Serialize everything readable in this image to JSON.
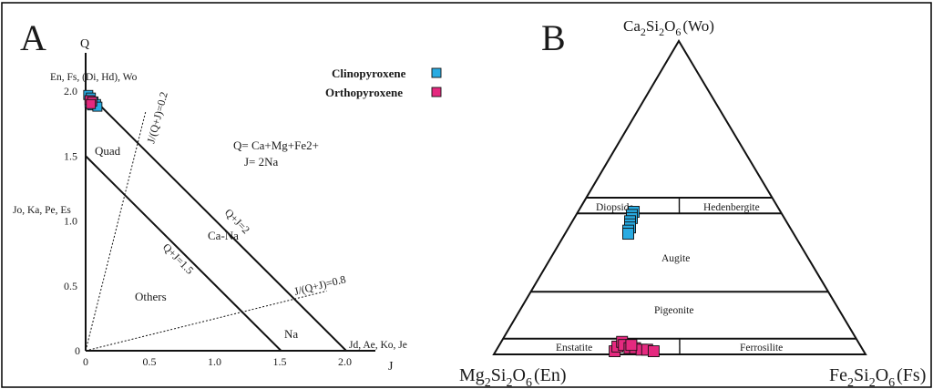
{
  "chart_data": [
    {
      "panel": "A",
      "type": "scatter",
      "xlabel": "J",
      "ylabel": "Q",
      "xlim": [
        0,
        2.0
      ],
      "ylim": [
        0,
        2.0
      ],
      "x_ticks": [
        "0",
        "0.5",
        "1.0",
        "1.5",
        "2.0"
      ],
      "y_ticks": [
        "0",
        "0.5",
        "1.0",
        "1.5",
        "2.0"
      ],
      "corner_labels": {
        "top": "En, Fs, (Di, Hd), Wo",
        "middle": "Jo, Ka, Pe, Es",
        "bottom_right": "Jd, Ae, Ko, Je"
      },
      "lines": [
        {
          "label": "Q+J=2",
          "from": [
            0,
            2.0
          ],
          "to": [
            2.0,
            0
          ]
        },
        {
          "label": "Q+J=1.5",
          "from": [
            0,
            1.5
          ],
          "to": [
            1.5,
            0
          ]
        },
        {
          "label": "J/(Q+J)=0.2",
          "from": [
            0,
            0
          ],
          "to": [
            0.46,
            1.84
          ],
          "style": "dotted"
        },
        {
          "label": "J/(Q+J)=0.8",
          "from": [
            0,
            0
          ],
          "to": [
            1.85,
            0.46
          ],
          "style": "dotted"
        }
      ],
      "fields": [
        "Quad",
        "Ca-Na",
        "Others",
        "Na"
      ],
      "formulas": [
        "Q= Ca+Mg+Fe2+",
        "J= 2Na"
      ],
      "legend": {
        "position": "top-right",
        "entries": [
          "Clinopyroxene",
          "Orthopyroxene"
        ]
      },
      "series": [
        {
          "name": "Clinopyroxene",
          "color": "#29abe2",
          "points": [
            [
              0.02,
              1.97
            ],
            [
              0.04,
              1.95
            ],
            [
              0.06,
              1.92
            ],
            [
              0.08,
              1.9
            ],
            [
              0.05,
              1.89
            ],
            [
              0.09,
              1.88
            ],
            [
              0.03,
              1.91
            ]
          ]
        },
        {
          "name": "Orthopyroxene",
          "color": "#e5297f",
          "points": [
            [
              0.03,
              1.93
            ],
            [
              0.05,
              1.92
            ],
            [
              0.04,
              1.9
            ]
          ]
        }
      ]
    },
    {
      "panel": "B",
      "type": "scatter",
      "subtype": "ternary",
      "vertices": {
        "top": {
          "base": "Ca2Si2O6",
          "parts": [
            "Ca",
            "2",
            "Si",
            "2",
            "O",
            "6",
            "(Wo)"
          ]
        },
        "left": {
          "base": "Mg2Si2O6",
          "parts": [
            "Mg",
            "2",
            "Si",
            "2",
            "O",
            "6",
            "(En)"
          ]
        },
        "right": {
          "base": "Fe2Si2O6",
          "parts": [
            "Fe",
            "2",
            "Si",
            "2",
            "O",
            "6",
            "(Fs)"
          ]
        }
      },
      "wo_boundaries": [
        50,
        45,
        20,
        5
      ],
      "fields": [
        "Diopside",
        "Hedenbergite",
        "Augite",
        "Pigeonite",
        "Enstatite",
        "Ferrosilite"
      ],
      "series": [
        {
          "name": "Clinopyroxene",
          "color": "#29abe2",
          "points_wo_en_fs": [
            [
              45.5,
              39.5,
              15.0
            ],
            [
              44.5,
              40.5,
              15.0
            ],
            [
              43.5,
              41.0,
              15.5
            ],
            [
              42.5,
              42.0,
              15.5
            ],
            [
              41.5,
              42.5,
              16.0
            ],
            [
              40.5,
              43.0,
              16.5
            ],
            [
              39.5,
              44.0,
              16.5
            ],
            [
              38.5,
              44.5,
              17.0
            ]
          ]
        },
        {
          "name": "Orthopyroxene",
          "color": "#e5297f",
          "points_wo_en_fs": [
            [
              1.0,
              67.0,
              32.0
            ],
            [
              2.5,
              65.5,
              32.0
            ],
            [
              4.0,
              63.5,
              32.5
            ],
            [
              3.0,
              63.5,
              33.5
            ],
            [
              2.0,
              62.5,
              35.5
            ],
            [
              2.0,
              61.0,
              37.0
            ],
            [
              1.5,
              59.5,
              39.0
            ],
            [
              1.5,
              58.0,
              40.5
            ],
            [
              1.0,
              56.5,
              42.5
            ],
            [
              3.0,
              61.5,
              35.5
            ]
          ]
        }
      ]
    }
  ],
  "panel_labels": {
    "a": "A",
    "b": "B"
  }
}
